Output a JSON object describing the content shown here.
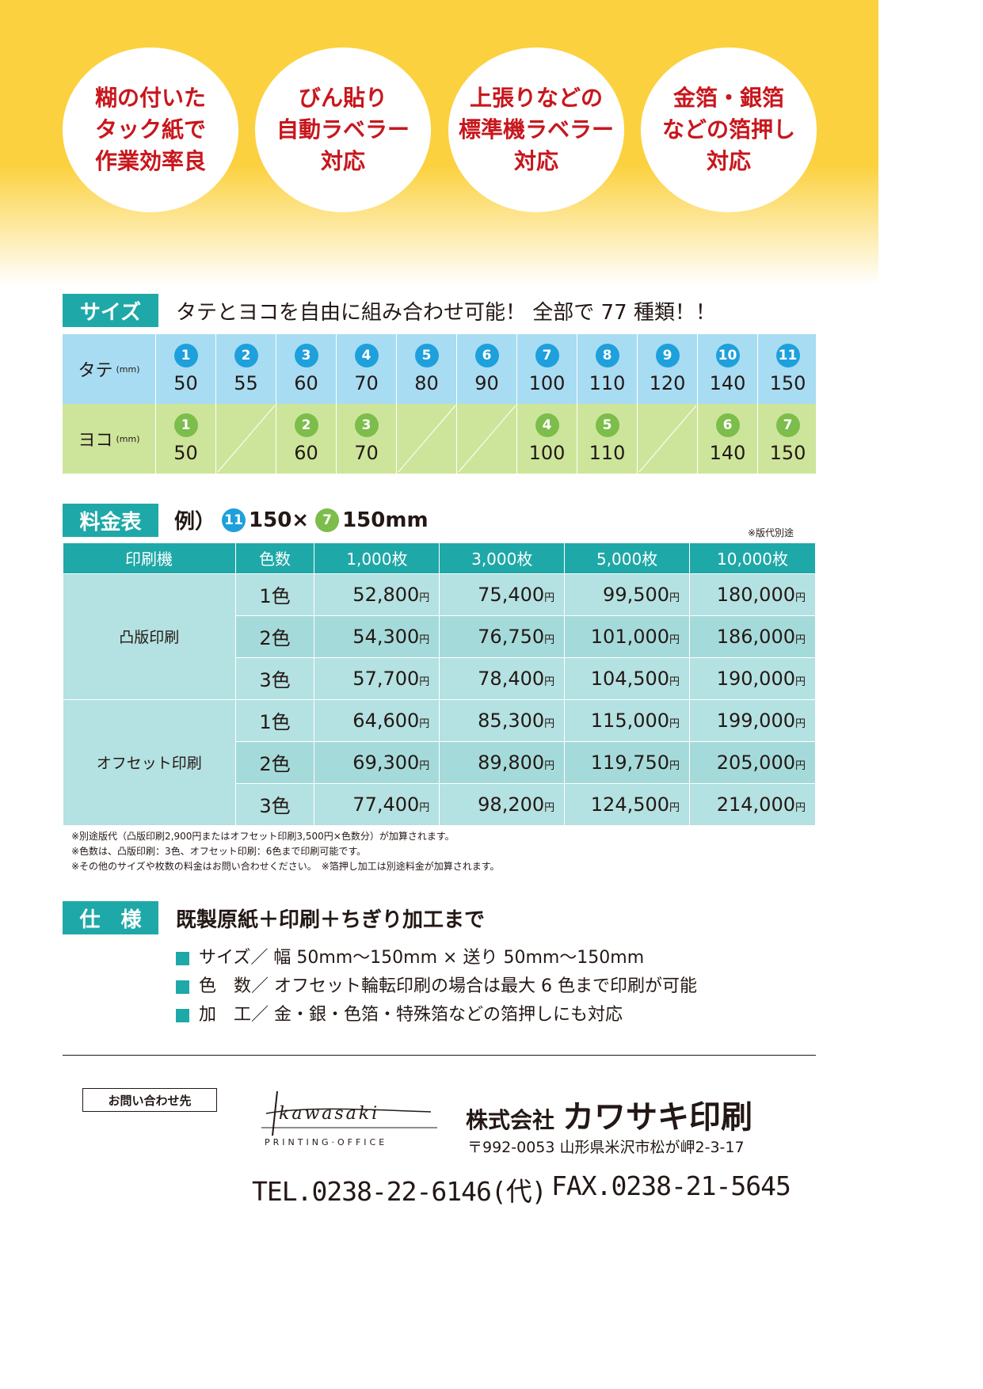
{
  "features": [
    {
      "lines": [
        "糊の付いた",
        "タック紙で",
        "作業効率良"
      ]
    },
    {
      "lines": [
        "びん貼り",
        "自動ラベラー",
        "対応"
      ]
    },
    {
      "lines": [
        "上張りなどの",
        "標準機ラベラー",
        "対応"
      ]
    },
    {
      "lines": [
        "金箔・銀箔",
        "などの箔押し",
        "対応"
      ]
    }
  ],
  "size_section": {
    "label": "サイズ",
    "text": "タテとヨコを自由に組み合わせ可能！ 全部で 77 種類！！",
    "tate": {
      "label": "タテ",
      "unit": "(mm)",
      "items": [
        {
          "no": "1",
          "val": "50"
        },
        {
          "no": "2",
          "val": "55"
        },
        {
          "no": "3",
          "val": "60"
        },
        {
          "no": "4",
          "val": "70"
        },
        {
          "no": "5",
          "val": "80"
        },
        {
          "no": "6",
          "val": "90"
        },
        {
          "no": "7",
          "val": "100"
        },
        {
          "no": "8",
          "val": "110"
        },
        {
          "no": "9",
          "val": "120"
        },
        {
          "no": "10",
          "val": "140"
        },
        {
          "no": "11",
          "val": "150"
        }
      ]
    },
    "yoko": {
      "label": "ヨコ",
      "unit": "(mm)",
      "items": [
        {
          "no": "1",
          "val": "50"
        },
        null,
        {
          "no": "2",
          "val": "60"
        },
        {
          "no": "3",
          "val": "70"
        },
        null,
        null,
        {
          "no": "4",
          "val": "100"
        },
        {
          "no": "5",
          "val": "110"
        },
        null,
        {
          "no": "6",
          "val": "140"
        },
        {
          "no": "7",
          "val": "150"
        }
      ]
    },
    "colors": {
      "tate_bg": "#a8dcf2",
      "yoko_bg": "#cde59b",
      "tate_badge": "#1ea0dc",
      "yoko_badge": "#7cbd4b"
    }
  },
  "price_section": {
    "label": "料金表",
    "example_prefix": "例）",
    "example_badge1": "11",
    "example_mid": "150×",
    "example_badge2": "7",
    "example_suffix": "150mm",
    "note_plate": "※版代別途",
    "headers": [
      "印刷機",
      "色数",
      "1,000枚",
      "3,000枚",
      "5,000枚",
      "10,000枚"
    ],
    "yen": "円",
    "groups": [
      {
        "method": "凸版印刷",
        "rows": [
          {
            "colors": "1色",
            "prices": [
              "52,800",
              "75,400",
              "99,500",
              "180,000"
            ]
          },
          {
            "colors": "2色",
            "prices": [
              "54,300",
              "76,750",
              "101,000",
              "186,000"
            ]
          },
          {
            "colors": "3色",
            "prices": [
              "57,700",
              "78,400",
              "104,500",
              "190,000"
            ]
          }
        ]
      },
      {
        "method": "オフセット印刷",
        "rows": [
          {
            "colors": "1色",
            "prices": [
              "64,600",
              "85,300",
              "115,000",
              "199,000"
            ]
          },
          {
            "colors": "2色",
            "prices": [
              "69,300",
              "89,800",
              "119,750",
              "205,000"
            ]
          },
          {
            "colors": "3色",
            "prices": [
              "77,400",
              "98,200",
              "124,500",
              "214,000"
            ]
          }
        ]
      }
    ],
    "notes": [
      "※別途版代（凸版印刷2,900円またはオフセット印刷3,500円×色数分）が加算されます。",
      "※色数は、凸版印刷：3色、オフセット印刷：6色まで印刷可能です。",
      "※その他のサイズや枚数の料金はお問い合わせください。　※箔押し加工は別途料金が加算されます。"
    ]
  },
  "spec_section": {
    "label": "仕　様",
    "text": "既製原紙＋印刷＋ちぎり加工まで",
    "items": [
      "サイズ／ 幅 50mm〜150mm × 送り 50mm〜150mm",
      "色　数／ オフセット輪転印刷の場合は最大 6 色まで印刷が可能",
      "加　工／ 金・銀・色箔・特殊箔などの箔押しにも対応"
    ]
  },
  "contact": {
    "box_label": "お問い合わせ先",
    "logo_script": "kawasaki",
    "logo_sub": "PRINTING·OFFICE",
    "company_prefix": "株式会社",
    "company_name": "カワサキ印刷",
    "address": "〒992-0053 山形県米沢市松が岬2-3-17",
    "tel": "TEL.0238-22-6146(代)",
    "fax": "FAX.0238-21-5645"
  },
  "theme": {
    "accent": "#1fa8a8",
    "red": "#c8161d",
    "yellow": "#fcd13f"
  }
}
